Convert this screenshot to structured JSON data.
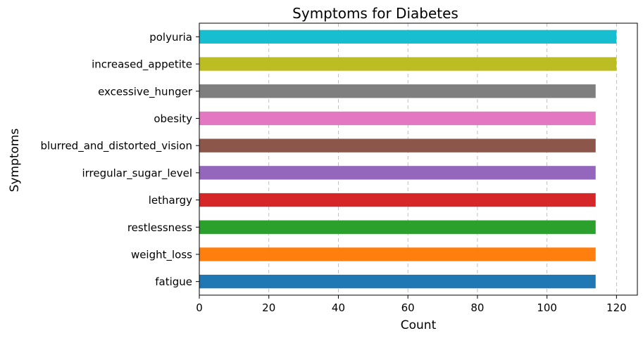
{
  "chart_data": {
    "type": "bar",
    "orientation": "horizontal",
    "title": "Symptoms for Diabetes",
    "xlabel": "Count",
    "ylabel": "Symptoms",
    "xlim": [
      0,
      126
    ],
    "xticks": [
      0,
      20,
      40,
      60,
      80,
      100,
      120
    ],
    "grid": "x-dashed",
    "categories": [
      "fatigue",
      "weight_loss",
      "restlessness",
      "lethargy",
      "irregular_sugar_level",
      "blurred_and_distorted_vision",
      "obesity",
      "excessive_hunger",
      "increased_appetite",
      "polyuria"
    ],
    "values": [
      114,
      114,
      114,
      114,
      114,
      114,
      114,
      114,
      120,
      120
    ],
    "colors": [
      "#1f77b4",
      "#ff7f0e",
      "#2ca02c",
      "#d62728",
      "#9467bd",
      "#8c564b",
      "#e377c2",
      "#7f7f7f",
      "#bcbd22",
      "#17becf"
    ]
  }
}
